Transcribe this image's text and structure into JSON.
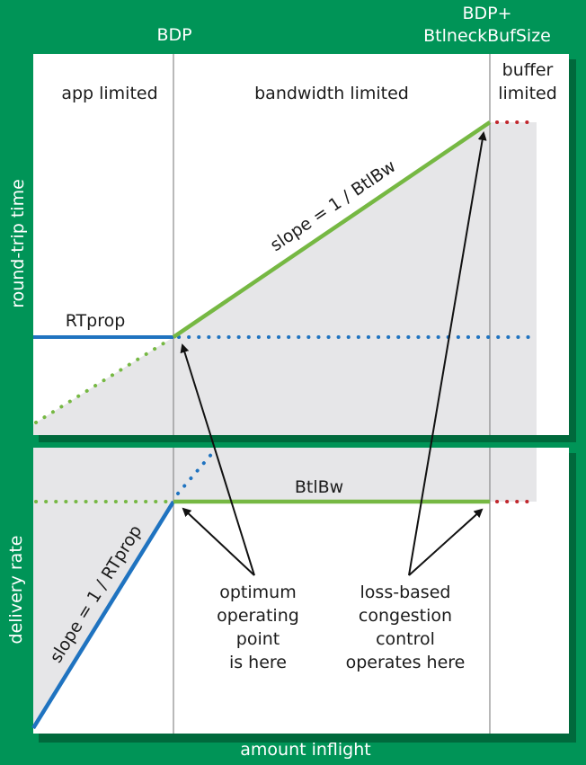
{
  "headers": {
    "bdp": "BDP",
    "bdp_plus_line1": "BDP+",
    "bdp_plus_line2": "BtlneckBufSize"
  },
  "axes": {
    "top_y": "round-trip time",
    "bottom_y": "delivery rate",
    "x": "amount inflight"
  },
  "regions": {
    "app": "app limited",
    "bandwidth": "bandwidth limited",
    "buffer_line1": "buffer",
    "buffer_line2": "limited"
  },
  "labels": {
    "rtprop": "RTprop",
    "slope_top": "slope = 1 / BtlBw",
    "btlbw": "BtlBw",
    "slope_bottom": "slope = 1 / RTprop"
  },
  "annotations": {
    "optimum": [
      "optimum",
      "operating",
      "point",
      "is here"
    ],
    "lossbased": [
      "loss-based",
      "congestion",
      "control",
      "operates here"
    ]
  },
  "colors": {
    "background": "#009457",
    "panel": "#ffffff",
    "shade": "#e6e6e8",
    "green_line": "#76b843",
    "blue_line": "#1f73c0",
    "red_dots": "#c1272d",
    "grid": "#888888"
  }
}
